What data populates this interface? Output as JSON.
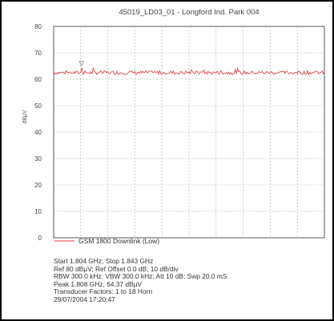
{
  "chart_data": {
    "type": "line",
    "title": "45019_LD03_01 - Longford Ind. Park 004",
    "xlabel": "",
    "ylabel": "dBµV",
    "ylim": [
      0,
      80
    ],
    "yticks": [
      0,
      10,
      20,
      30,
      40,
      50,
      60,
      70,
      80
    ],
    "grid": true,
    "legend_placement": "bottom-left",
    "x_range_ghz": [
      1.804,
      1.843
    ],
    "series": [
      {
        "name": "GSM 1800 Downlink (Low)",
        "color": "#e03030",
        "approx_level_dbuv": 62.5,
        "peak": {
          "x_ghz": 1.808,
          "y_dbuv": 64.37
        }
      }
    ],
    "marker": {
      "symbol": "▽",
      "x_ghz": 1.808,
      "y_dbuv": 64.37
    },
    "info_lines": [
      "Start 1.804 GHz; Stop 1.843 GHz",
      "Ref 80 dBµV; Ref Offset 0.0 dB; 10 dB/div",
      "RBW 300.0 kHz; VBW 300.0 kHz; Att 10 dB; Swp 20.0 mS",
      "Peak 1.808 GHz, 64.37 dBµV",
      "Transducer Factors: 1 to 18 Horn",
      "29/07/2004 17:20:47"
    ]
  }
}
